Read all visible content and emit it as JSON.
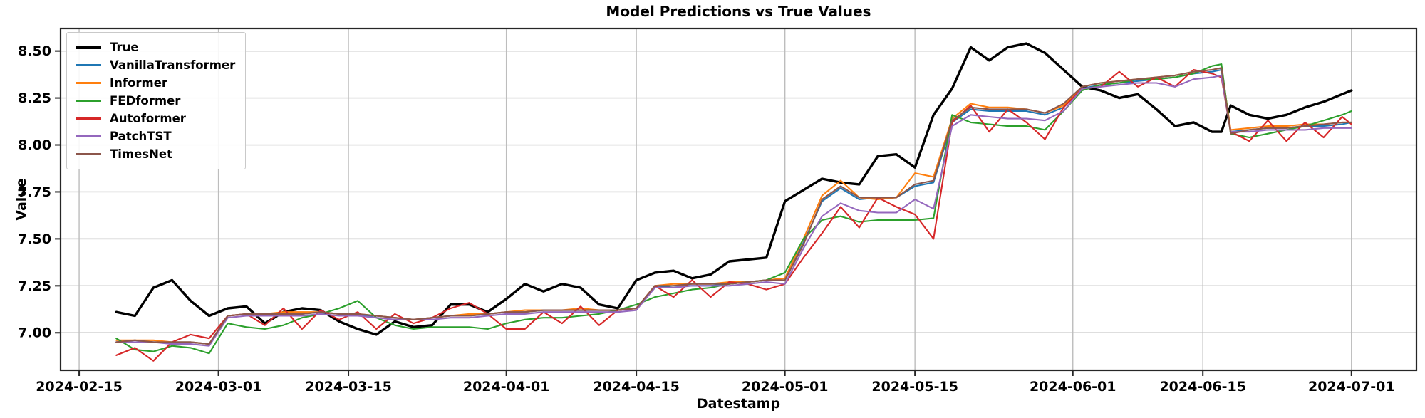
{
  "axis": {
    "background": "#ffffff",
    "grid_color": "#bdbdbd",
    "spine_color": "#262626",
    "tick_color": "#262626",
    "text_color": "#000000"
  },
  "chart_data": {
    "type": "line",
    "title": "Model Predictions vs True Values",
    "xlabel": "Datestamp",
    "ylabel": "Value",
    "grid": true,
    "legend_position": "upper-left",
    "ylim": [
      6.8,
      8.62
    ],
    "xlim": [
      "2024-02-13",
      "2024-07-08"
    ],
    "y_ticks": [
      7.0,
      7.25,
      7.5,
      7.75,
      8.0,
      8.25,
      8.5
    ],
    "x_ticks": [
      "2024-02-15",
      "2024-03-01",
      "2024-03-15",
      "2024-04-01",
      "2024-04-15",
      "2024-05-01",
      "2024-05-15",
      "2024-06-01",
      "2024-06-15",
      "2024-07-01"
    ],
    "x": [
      "2024-02-19",
      "2024-02-21",
      "2024-02-23",
      "2024-02-25",
      "2024-02-27",
      "2024-02-29",
      "2024-03-02",
      "2024-03-04",
      "2024-03-06",
      "2024-03-08",
      "2024-03-10",
      "2024-03-12",
      "2024-03-14",
      "2024-03-16",
      "2024-03-18",
      "2024-03-20",
      "2024-03-22",
      "2024-03-24",
      "2024-03-26",
      "2024-03-28",
      "2024-03-30",
      "2024-04-01",
      "2024-04-03",
      "2024-04-05",
      "2024-04-07",
      "2024-04-09",
      "2024-04-11",
      "2024-04-13",
      "2024-04-15",
      "2024-04-17",
      "2024-04-19",
      "2024-04-21",
      "2024-04-23",
      "2024-04-25",
      "2024-04-27",
      "2024-04-29",
      "2024-05-01",
      "2024-05-03",
      "2024-05-05",
      "2024-05-07",
      "2024-05-09",
      "2024-05-11",
      "2024-05-13",
      "2024-05-15",
      "2024-05-17",
      "2024-05-19",
      "2024-05-21",
      "2024-05-23",
      "2024-05-25",
      "2024-05-27",
      "2024-05-29",
      "2024-05-31",
      "2024-06-02",
      "2024-06-04",
      "2024-06-06",
      "2024-06-08",
      "2024-06-10",
      "2024-06-12",
      "2024-06-14",
      "2024-06-16",
      "2024-06-17",
      "2024-06-18",
      "2024-06-20",
      "2024-06-22",
      "2024-06-24",
      "2024-06-26",
      "2024-06-28",
      "2024-06-30",
      "2024-07-01"
    ],
    "series": [
      {
        "name": "True",
        "color": "#000000",
        "line_width": 3.4,
        "values": [
          7.11,
          7.09,
          7.24,
          7.28,
          7.17,
          7.09,
          7.13,
          7.14,
          7.05,
          7.11,
          7.13,
          7.12,
          7.06,
          7.02,
          6.99,
          7.06,
          7.03,
          7.04,
          7.15,
          7.15,
          7.11,
          7.18,
          7.26,
          7.22,
          7.26,
          7.24,
          7.15,
          7.13,
          7.28,
          7.32,
          7.33,
          7.29,
          7.31,
          7.38,
          7.39,
          7.4,
          7.7,
          7.76,
          7.82,
          7.8,
          7.79,
          7.94,
          7.95,
          7.88,
          8.16,
          8.3,
          8.52,
          8.45,
          8.52,
          8.54,
          8.49,
          8.4,
          8.31,
          8.29,
          8.25,
          8.27,
          8.19,
          8.1,
          8.12,
          8.07,
          8.07,
          8.21,
          8.16,
          8.14,
          8.16,
          8.2,
          8.23,
          8.27,
          8.29
        ]
      },
      {
        "name": "VanillaTransformer",
        "color": "#1f77b4",
        "line_width": 2.1,
        "values": [
          6.95,
          6.96,
          6.95,
          6.95,
          6.95,
          6.94,
          7.09,
          7.1,
          7.1,
          7.1,
          7.1,
          7.11,
          7.1,
          7.09,
          7.09,
          7.08,
          7.07,
          7.08,
          7.09,
          7.09,
          7.1,
          7.11,
          7.11,
          7.12,
          7.12,
          7.12,
          7.12,
          7.12,
          7.13,
          7.24,
          7.25,
          7.25,
          7.25,
          7.26,
          7.27,
          7.28,
          7.28,
          7.48,
          7.7,
          7.77,
          7.71,
          7.72,
          7.72,
          7.78,
          7.8,
          8.12,
          8.19,
          8.18,
          8.18,
          8.18,
          8.16,
          8.2,
          8.3,
          8.32,
          8.33,
          8.34,
          8.35,
          8.36,
          8.38,
          8.39,
          8.4,
          8.07,
          8.08,
          8.09,
          8.09,
          8.1,
          8.1,
          8.11,
          8.12
        ]
      },
      {
        "name": "Informer",
        "color": "#ff7f0e",
        "line_width": 2.1,
        "values": [
          6.96,
          6.96,
          6.96,
          6.95,
          6.95,
          6.94,
          7.09,
          7.1,
          7.1,
          7.11,
          7.11,
          7.11,
          7.1,
          7.1,
          7.09,
          7.08,
          7.07,
          7.08,
          7.09,
          7.1,
          7.1,
          7.11,
          7.12,
          7.12,
          7.12,
          7.13,
          7.12,
          7.12,
          7.13,
          7.25,
          7.26,
          7.26,
          7.26,
          7.27,
          7.27,
          7.28,
          7.29,
          7.5,
          7.73,
          7.81,
          7.72,
          7.71,
          7.72,
          7.85,
          7.83,
          8.14,
          8.22,
          8.2,
          8.2,
          8.19,
          8.17,
          8.21,
          8.31,
          8.33,
          8.34,
          8.35,
          8.36,
          8.37,
          8.39,
          8.4,
          8.41,
          8.08,
          8.09,
          8.1,
          8.1,
          8.11,
          8.11,
          8.12,
          8.12
        ]
      },
      {
        "name": "FEDformer",
        "color": "#2ca02c",
        "line_width": 2.1,
        "values": [
          6.97,
          6.91,
          6.9,
          6.93,
          6.92,
          6.89,
          7.05,
          7.03,
          7.02,
          7.04,
          7.08,
          7.1,
          7.13,
          7.17,
          7.08,
          7.04,
          7.02,
          7.03,
          7.03,
          7.03,
          7.02,
          7.05,
          7.07,
          7.08,
          7.08,
          7.09,
          7.1,
          7.12,
          7.15,
          7.19,
          7.21,
          7.23,
          7.24,
          7.26,
          7.27,
          7.28,
          7.32,
          7.5,
          7.6,
          7.62,
          7.59,
          7.6,
          7.6,
          7.6,
          7.61,
          8.16,
          8.12,
          8.11,
          8.1,
          8.1,
          8.08,
          8.18,
          8.29,
          8.32,
          8.33,
          8.35,
          8.35,
          8.36,
          8.38,
          8.42,
          8.43,
          8.06,
          8.04,
          8.06,
          8.08,
          8.1,
          8.13,
          8.16,
          8.18
        ]
      },
      {
        "name": "Autoformer",
        "color": "#d62728",
        "line_width": 2.1,
        "values": [
          6.88,
          6.92,
          6.85,
          6.95,
          6.99,
          6.97,
          7.09,
          7.1,
          7.04,
          7.13,
          7.02,
          7.12,
          7.07,
          7.11,
          7.02,
          7.1,
          7.05,
          7.08,
          7.13,
          7.16,
          7.1,
          7.02,
          7.02,
          7.11,
          7.05,
          7.14,
          7.04,
          7.12,
          7.13,
          7.25,
          7.19,
          7.28,
          7.19,
          7.27,
          7.26,
          7.23,
          7.26,
          7.4,
          7.53,
          7.67,
          7.56,
          7.72,
          7.67,
          7.63,
          7.5,
          8.12,
          8.21,
          8.07,
          8.19,
          8.12,
          8.03,
          8.2,
          8.3,
          8.31,
          8.39,
          8.31,
          8.36,
          8.31,
          8.4,
          8.38,
          8.36,
          8.07,
          8.02,
          8.13,
          8.02,
          8.12,
          8.04,
          8.15,
          8.11
        ]
      },
      {
        "name": "PatchTST",
        "color": "#9467bd",
        "line_width": 2.1,
        "values": [
          6.95,
          6.95,
          6.95,
          6.94,
          6.94,
          6.93,
          7.08,
          7.09,
          7.09,
          7.09,
          7.09,
          7.1,
          7.09,
          7.09,
          7.08,
          7.07,
          7.07,
          7.07,
          7.08,
          7.08,
          7.09,
          7.1,
          7.1,
          7.11,
          7.11,
          7.11,
          7.11,
          7.11,
          7.12,
          7.24,
          7.24,
          7.25,
          7.25,
          7.25,
          7.26,
          7.27,
          7.26,
          7.45,
          7.62,
          7.69,
          7.65,
          7.64,
          7.64,
          7.71,
          7.66,
          8.1,
          8.16,
          8.15,
          8.14,
          8.14,
          8.13,
          8.18,
          8.3,
          8.31,
          8.32,
          8.33,
          8.33,
          8.31,
          8.35,
          8.36,
          8.37,
          8.07,
          8.07,
          8.08,
          8.08,
          8.08,
          8.09,
          8.09,
          8.09
        ]
      },
      {
        "name": "TimesNet",
        "color": "#8c564b",
        "line_width": 2.1,
        "values": [
          6.95,
          6.96,
          6.95,
          6.95,
          6.95,
          6.94,
          7.09,
          7.1,
          7.1,
          7.1,
          7.1,
          7.11,
          7.1,
          7.1,
          7.09,
          7.08,
          7.07,
          7.08,
          7.09,
          7.09,
          7.1,
          7.11,
          7.11,
          7.12,
          7.12,
          7.12,
          7.12,
          7.12,
          7.13,
          7.25,
          7.25,
          7.26,
          7.26,
          7.26,
          7.27,
          7.28,
          7.28,
          7.47,
          7.71,
          7.78,
          7.72,
          7.72,
          7.72,
          7.79,
          7.81,
          8.13,
          8.2,
          8.19,
          8.19,
          8.19,
          8.17,
          8.22,
          8.31,
          8.33,
          8.34,
          8.35,
          8.36,
          8.37,
          8.39,
          8.4,
          8.41,
          8.06,
          8.08,
          8.09,
          8.09,
          8.1,
          8.11,
          8.12,
          8.12
        ]
      }
    ]
  }
}
